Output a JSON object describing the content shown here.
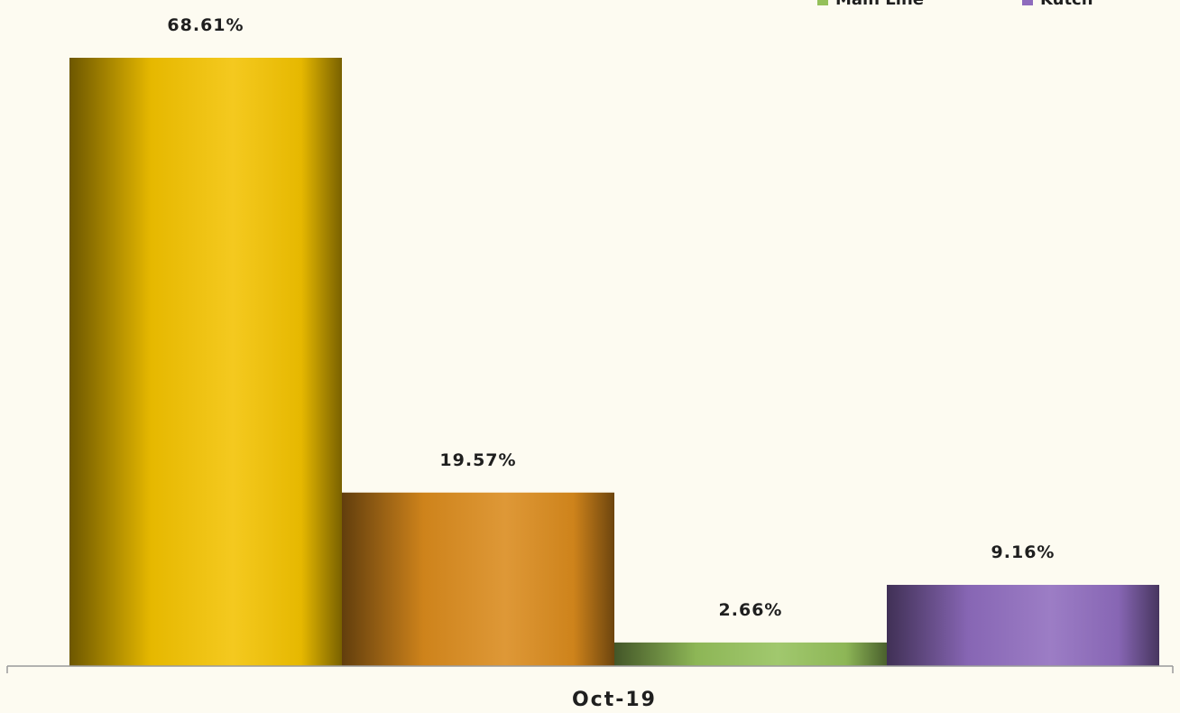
{
  "chart_data": {
    "type": "bar",
    "categories": [
      "Oct-19"
    ],
    "series": [
      {
        "name": "",
        "values": [
          68.61
        ],
        "color": "#f2c200",
        "data_label": "68.61%"
      },
      {
        "name": "",
        "values": [
          19.57
        ],
        "color": "#d98a1c",
        "data_label": "19.57%"
      },
      {
        "name": "Main Line",
        "values": [
          2.66
        ],
        "color": "#94c05a",
        "data_label": "2.66%"
      },
      {
        "name": "Kutch",
        "values": [
          9.16
        ],
        "color": "#8e6bbd",
        "data_label": "9.16%"
      }
    ],
    "ylim": [
      0,
      70
    ],
    "grid": false,
    "legend_position": "top-right",
    "unit": "%"
  }
}
